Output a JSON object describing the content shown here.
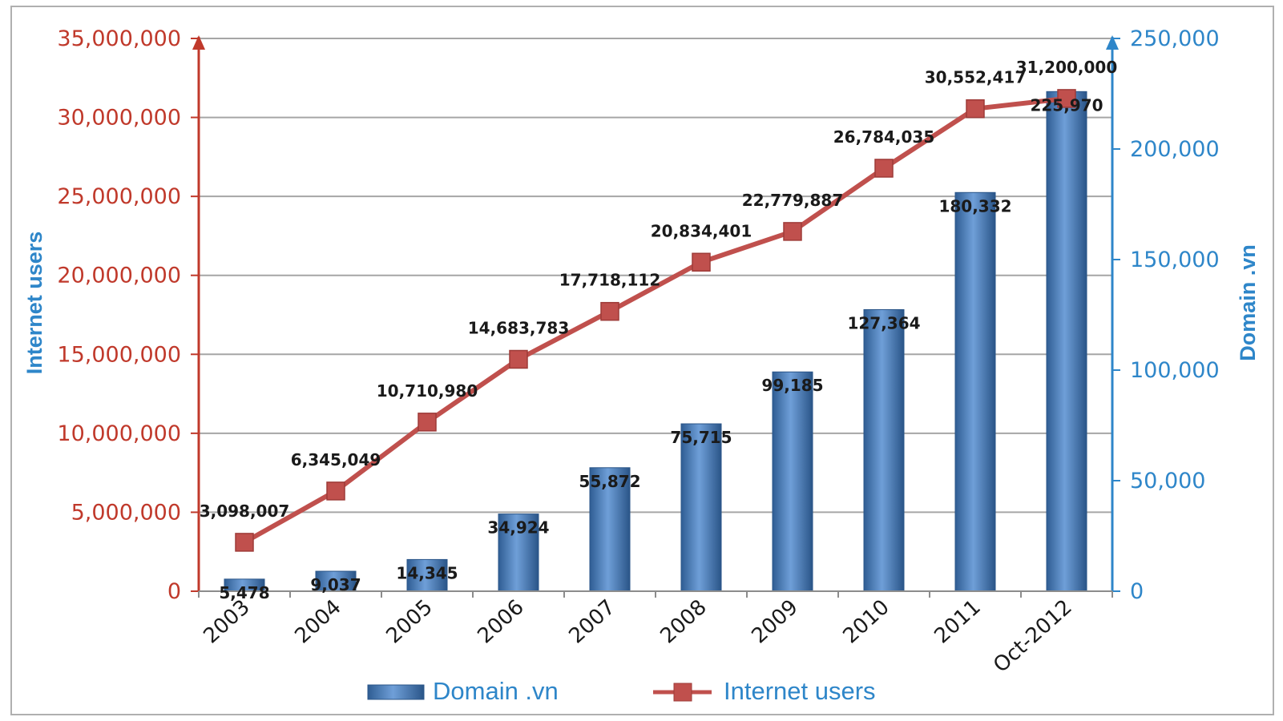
{
  "chart_data": {
    "type": "bar",
    "categories": [
      "2003",
      "2004",
      "2005",
      "2006",
      "2007",
      "2008",
      "2009",
      "2010",
      "2011",
      "Oct-2012"
    ],
    "series": [
      {
        "name": "Domain .vn",
        "type": "bar",
        "axis": "right",
        "values": [
          5478,
          9037,
          14345,
          34924,
          55872,
          75715,
          99185,
          127364,
          180332,
          225970
        ],
        "labels": [
          "5,478",
          "9,037",
          "14,345",
          "34,924",
          "55,872",
          "75,715",
          "99,185",
          "127,364",
          "180,332",
          "225,970"
        ],
        "color": "#4f81bd"
      },
      {
        "name": "Internet users",
        "type": "line",
        "axis": "left",
        "values": [
          3098007,
          6345049,
          10710980,
          14683783,
          17718112,
          20834401,
          22779887,
          26784035,
          30552417,
          31200000
        ],
        "labels": [
          "3,098,007",
          "6,345,049",
          "10,710,980",
          "14,683,783",
          "17,718,112",
          "20,834,401",
          "22,779,887",
          "26,784,035",
          "30,552,417",
          "31,200,000"
        ],
        "color": "#c0504d"
      }
    ],
    "ylabel": "Internet users",
    "y2label": "Domain .vn",
    "ylim": [
      0,
      35000000
    ],
    "y2lim": [
      0,
      250000
    ],
    "yticks": [
      "0",
      "5,000,000",
      "10,000,000",
      "15,000,000",
      "20,000,000",
      "25,000,000",
      "30,000,000",
      "35,000,000"
    ],
    "y2ticks": [
      "0",
      "50,000",
      "100,000",
      "150,000",
      "200,000",
      "250,000"
    ],
    "grid": true,
    "legend": "bottom",
    "axis_color_left": "#c0392b",
    "axis_color_right": "#2e86c9"
  }
}
